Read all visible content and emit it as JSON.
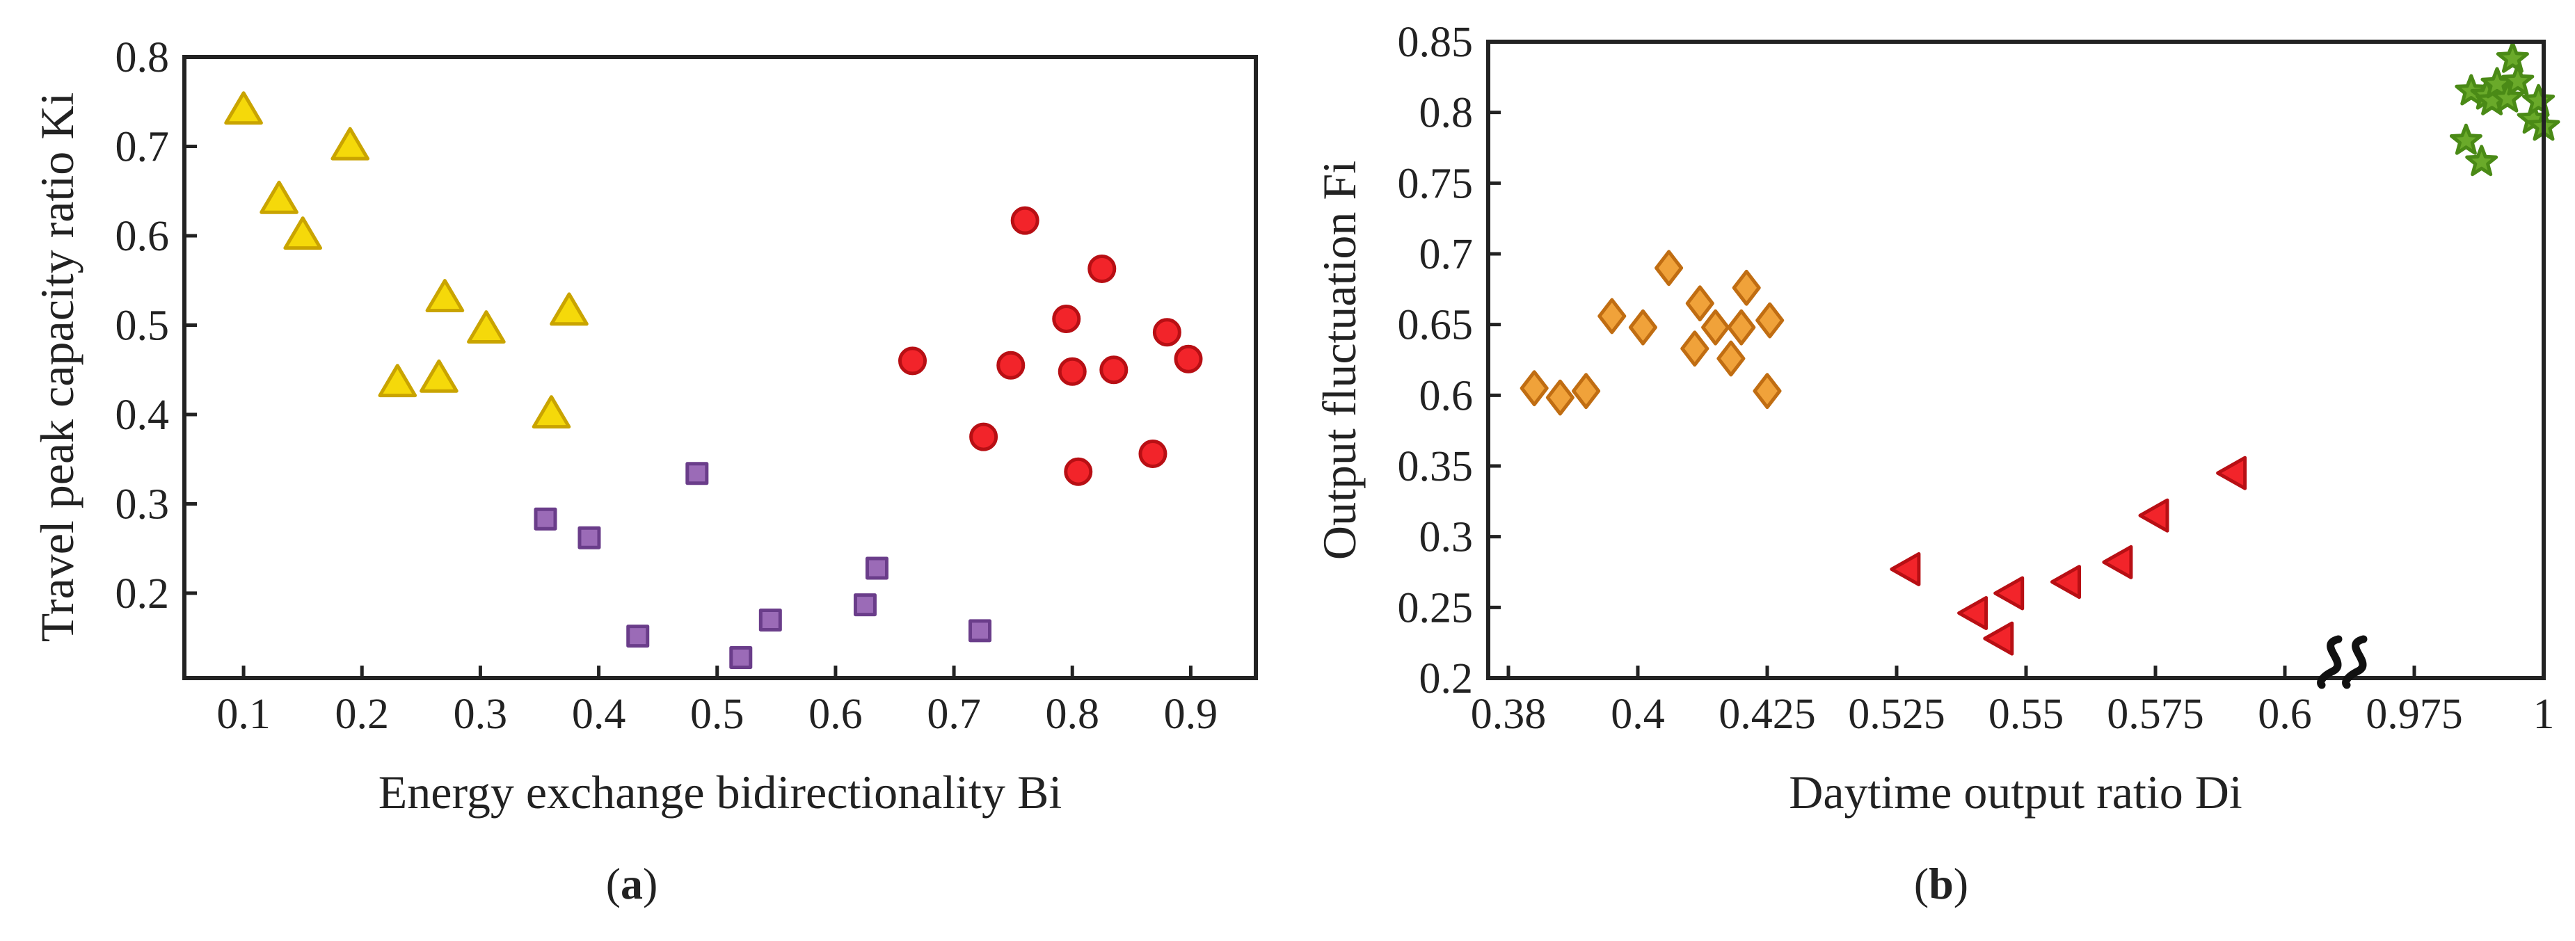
{
  "chart_data": [
    {
      "type": "scatter",
      "id": "a",
      "caption_open": "(",
      "caption_letter": "a",
      "caption_close": ")",
      "xlabel": "Energy exchange bidirectionality Bi",
      "ylabel": "Travel peak capacity ratio Ki",
      "xlim": [
        0.05,
        0.955
      ],
      "ylim": [
        0.105,
        0.8
      ],
      "xticks": [
        0.1,
        0.2,
        0.3,
        0.4,
        0.5,
        0.6,
        0.7,
        0.8,
        0.9
      ],
      "yticks": [
        0.2,
        0.3,
        0.4,
        0.5,
        0.6,
        0.7,
        0.8
      ],
      "series": [
        {
          "name": "triangle-yellow",
          "marker": "triangle-up",
          "fill": "#f5d90a",
          "stroke": "#c9a400",
          "points": [
            [
              0.1,
              0.74
            ],
            [
              0.13,
              0.64
            ],
            [
              0.15,
              0.6
            ],
            [
              0.19,
              0.7
            ],
            [
              0.23,
              0.435
            ],
            [
              0.265,
              0.44
            ],
            [
              0.27,
              0.53
            ],
            [
              0.305,
              0.495
            ],
            [
              0.36,
              0.4
            ],
            [
              0.375,
              0.515
            ]
          ]
        },
        {
          "name": "square-purple",
          "marker": "square",
          "fill": "#9b6bb7",
          "stroke": "#6a3d8a",
          "points": [
            [
              0.355,
              0.283
            ],
            [
              0.392,
              0.262
            ],
            [
              0.433,
              0.152
            ],
            [
              0.483,
              0.334
            ],
            [
              0.52,
              0.128
            ],
            [
              0.545,
              0.17
            ],
            [
              0.625,
              0.187
            ],
            [
              0.635,
              0.228
            ],
            [
              0.722,
              0.158
            ]
          ]
        },
        {
          "name": "circle-red",
          "marker": "circle",
          "fill": "#f2242a",
          "stroke": "#b80f14",
          "points": [
            [
              0.665,
              0.46
            ],
            [
              0.725,
              0.375
            ],
            [
              0.748,
              0.455
            ],
            [
              0.76,
              0.617
            ],
            [
              0.795,
              0.507
            ],
            [
              0.8,
              0.448
            ],
            [
              0.805,
              0.336
            ],
            [
              0.825,
              0.563
            ],
            [
              0.835,
              0.45
            ],
            [
              0.868,
              0.356
            ],
            [
              0.88,
              0.492
            ],
            [
              0.898,
              0.462
            ]
          ]
        }
      ]
    },
    {
      "type": "scatter",
      "id": "b",
      "caption_open": "(",
      "caption_letter": "b",
      "caption_close": ")",
      "xlabel": "Daytime output ratio Di",
      "ylabel": "Output fluctuation Fi",
      "break_note": "broken x axis (0.6 to 0.975) and broken y axis (0.35 to 0.6)",
      "xlim": [
        0.38,
        1.0
      ],
      "ylim": [
        0.2,
        0.85
      ],
      "xticks": [
        {
          "label": "0.38",
          "value": 0.38
        },
        {
          "label": "0.4",
          "value": 0.4
        },
        {
          "label": "0.425",
          "value": 0.425
        },
        {
          "label": "0.525",
          "value": 0.525
        },
        {
          "label": "0.55",
          "value": 0.55
        },
        {
          "label": "0.575",
          "value": 0.575
        },
        {
          "label": "0.6",
          "value": 0.6
        },
        {
          "label": "0.975",
          "value": 0.975
        },
        {
          "label": "1",
          "value": 1.0
        }
      ],
      "yticks": [
        {
          "label": "0.2",
          "value": 0.2
        },
        {
          "label": "0.25",
          "value": 0.25
        },
        {
          "label": "0.3",
          "value": 0.3
        },
        {
          "label": "0.35",
          "value": 0.35
        },
        {
          "label": "0.6",
          "value": 0.6
        },
        {
          "label": "0.65",
          "value": 0.65
        },
        {
          "label": "0.7",
          "value": 0.7
        },
        {
          "label": "0.75",
          "value": 0.75
        },
        {
          "label": "0.8",
          "value": 0.8
        },
        {
          "label": "0.85",
          "value": 0.85
        }
      ],
      "series": [
        {
          "name": "diamond-orange",
          "marker": "diamond",
          "fill": "#f0a23a",
          "stroke": "#c06d12",
          "points": [
            [
              0.384,
              0.605
            ],
            [
              0.388,
              0.592
            ],
            [
              0.392,
              0.603
            ],
            [
              0.396,
              0.656
            ],
            [
              0.401,
              0.648
            ],
            [
              0.406,
              0.69
            ],
            [
              0.411,
              0.633
            ],
            [
              0.412,
              0.665
            ],
            [
              0.415,
              0.648
            ],
            [
              0.418,
              0.626
            ],
            [
              0.42,
              0.648
            ],
            [
              0.421,
              0.676
            ],
            [
              0.425,
              0.603
            ],
            [
              0.427,
              0.653
            ]
          ]
        },
        {
          "name": "triangle-left-red",
          "marker": "triangle-left",
          "fill": "#f2242a",
          "stroke": "#b80f14",
          "points": [
            [
              0.527,
              0.277
            ],
            [
              0.54,
              0.246
            ],
            [
              0.545,
              0.228
            ],
            [
              0.547,
              0.26
            ],
            [
              0.558,
              0.268
            ],
            [
              0.568,
              0.282
            ],
            [
              0.575,
              0.315
            ],
            [
              0.59,
              0.345
            ]
          ]
        },
        {
          "name": "star-green",
          "marker": "star",
          "fill": "#6aaa2a",
          "stroke": "#4a8a16",
          "points": [
            [
              0.985,
              0.78
            ],
            [
              0.986,
              0.815
            ],
            [
              0.988,
              0.765
            ],
            [
              0.989,
              0.812
            ],
            [
              0.99,
              0.808
            ],
            [
              0.991,
              0.82
            ],
            [
              0.993,
              0.81
            ],
            [
              0.994,
              0.838
            ],
            [
              0.995,
              0.822
            ],
            [
              0.998,
              0.795
            ],
            [
              0.999,
              0.808
            ],
            [
              1.0,
              0.79
            ]
          ]
        }
      ]
    }
  ]
}
